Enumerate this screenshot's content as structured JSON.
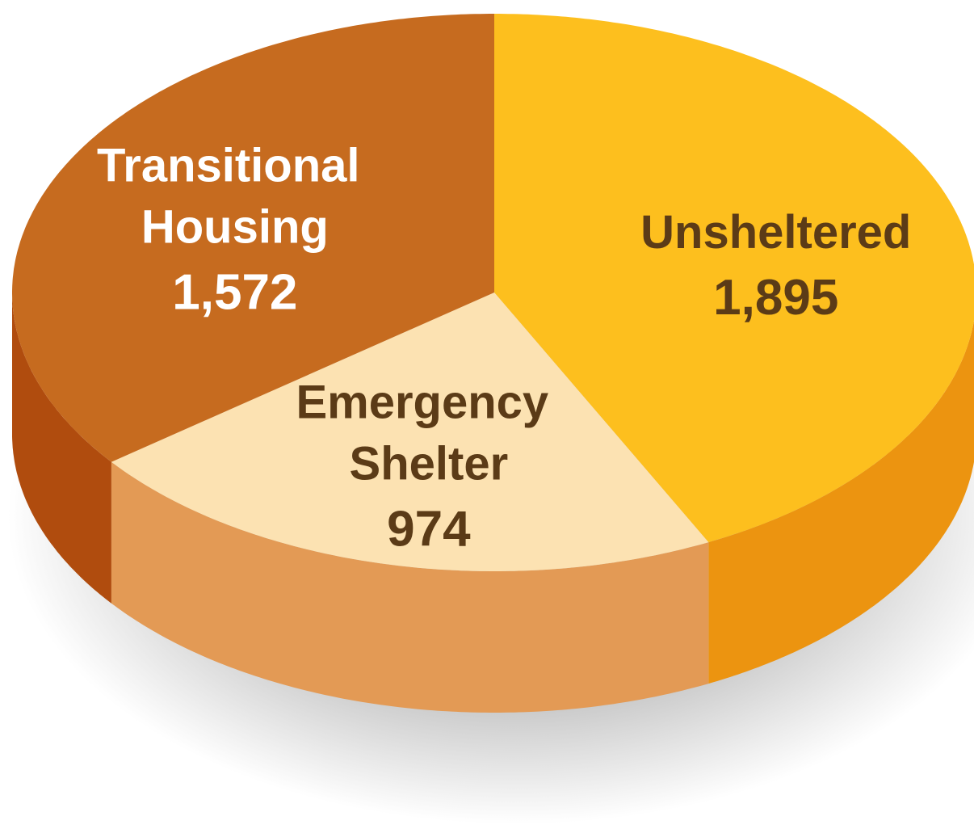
{
  "chart_data": {
    "type": "pie",
    "categories": [
      "Unsheltered",
      "Emergency Shelter",
      "Transitional Housing"
    ],
    "values": [
      1895,
      974,
      1572
    ],
    "value_labels": [
      "1,895",
      "974",
      "1,572"
    ],
    "colors": [
      "#fdbf1e",
      "#fce2b2",
      "#c66b1f"
    ],
    "side_colors": [
      "#ec9410",
      "#e39a55",
      "#b04c0e"
    ],
    "label_colors": [
      "#5b3b17",
      "#5b3b17",
      "#ffffff"
    ],
    "start_angle": 0,
    "direction": "clockwise"
  }
}
